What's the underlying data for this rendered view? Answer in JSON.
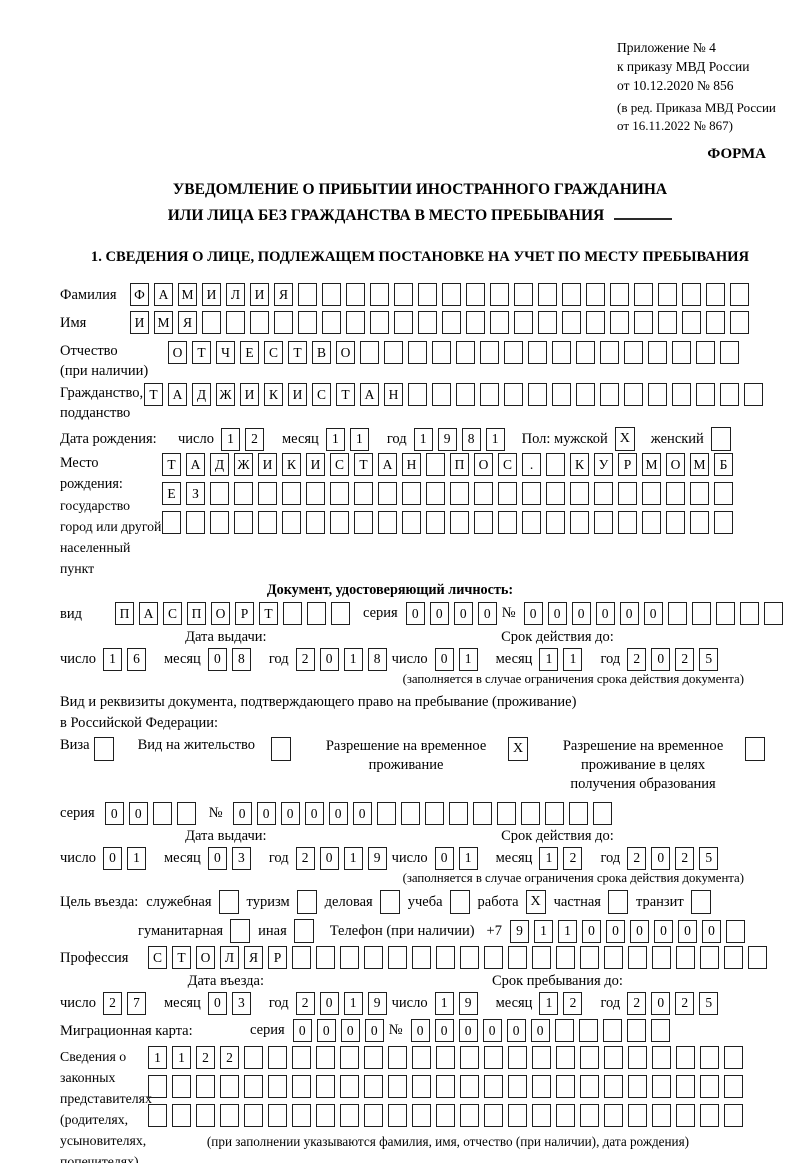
{
  "header": {
    "annex1": "Приложение № 4",
    "annex2": "к приказу МВД России",
    "annex3": "от 10.12.2020 № 856",
    "amend1": "(в ред. Приказа МВД России",
    "amend2": "от 16.11.2022 № 867)",
    "form_label": "ФОРМА",
    "title1": "УВЕДОМЛЕНИЕ О ПРИБЫТИИ ИНОСТРАННОГО ГРАЖДАНИНА",
    "title2": "ИЛИ ЛИЦА БЕЗ ГРАЖДАНСТВА В МЕСТО ПРЕБЫВАНИЯ",
    "section1": "1. СВЕДЕНИЯ О ЛИЦЕ, ПОДЛЕЖАЩЕМ ПОСТАНОВКЕ НА УЧЕТ ПО МЕСТУ ПРЕБЫВАНИЯ"
  },
  "person": {
    "surname": {
      "label": "Фамилия",
      "count": 26,
      "value": "ФАМИЛИЯ"
    },
    "firstname": {
      "label": "Имя",
      "count": 26,
      "value": "ИМЯ"
    },
    "patronymic": {
      "label": "Отчество",
      "note": "(при наличии)",
      "count": 24,
      "value": "ОТЧЕСТВО"
    },
    "citizenship": {
      "label1": "Гражданство,",
      "label2": "подданство",
      "count": 26,
      "value": "ТАДЖИКИСТАН"
    },
    "birth_date": {
      "label": "Дата рождения:",
      "day_label": "число",
      "month_label": "месяц",
      "year_label": "год",
      "day": {
        "count": 2,
        "value": "12"
      },
      "month": {
        "count": 2,
        "value": "11"
      },
      "year": {
        "count": 4,
        "value": "1981"
      }
    },
    "sex_label": "Пол: мужской",
    "sex_male": {
      "checked": true
    },
    "sex_female_label": "женский",
    "sex_female": {
      "checked": false
    },
    "birth_place": {
      "label1": "Место рождения:",
      "label2": "государство",
      "label3": "город или другой",
      "label4": "населенный пункт",
      "row1": {
        "count": 24,
        "value": "ТАДЖИКИСТАН ПОС. КУРМОМБ"
      },
      "row2": {
        "count": 24,
        "value": "ЕЗ"
      },
      "row3": {
        "count": 24,
        "value": ""
      }
    }
  },
  "identity_doc": {
    "heading": "Документ, удостоверяющий личность:",
    "kind_label": "вид",
    "kind": {
      "count": 10,
      "value": "ПАСПОРТ"
    },
    "series_label": "серия",
    "series": {
      "count": 4,
      "value": "0000"
    },
    "number_label": "№",
    "number": {
      "count": 11,
      "value": "000000"
    },
    "issue": {
      "heading": "Дата выдачи:",
      "day_label": "число",
      "month_label": "месяц",
      "year_label": "год",
      "day": {
        "count": 2,
        "value": "16"
      },
      "month": {
        "count": 2,
        "value": "08"
      },
      "year": {
        "count": 4,
        "value": "2018"
      }
    },
    "expiry": {
      "heading": "Срок действия до:",
      "day_label": "число",
      "month_label": "месяц",
      "year_label": "год",
      "day": {
        "count": 2,
        "value": "01"
      },
      "month": {
        "count": 2,
        "value": "11"
      },
      "year": {
        "count": 4,
        "value": "2025"
      }
    },
    "expiry_note": "(заполняется в случае ограничения срока действия документа)"
  },
  "residence_doc": {
    "intro1": "Вид и реквизиты документа, подтверждающего право на пребывание (проживание)",
    "intro2": "в Российской Федерации:",
    "options": [
      {
        "label": "Виза",
        "checked": false
      },
      {
        "label": "Вид на жительство",
        "checked": false
      },
      {
        "label": "Разрешение на временное\nпроживание",
        "checked": true
      },
      {
        "label": "Разрешение на временное\nпроживание в целях\nполучения образования",
        "checked": false
      }
    ],
    "series_label": "серия",
    "series": {
      "count": 4,
      "value": "00"
    },
    "number_label": "№",
    "number": {
      "count": 16,
      "value": "000000"
    },
    "issue": {
      "heading": "Дата выдачи:",
      "day_label": "число",
      "month_label": "месяц",
      "year_label": "год",
      "day": {
        "count": 2,
        "value": "01"
      },
      "month": {
        "count": 2,
        "value": "03"
      },
      "year": {
        "count": 4,
        "value": "2019"
      }
    },
    "expiry": {
      "heading": "Срок действия до:",
      "day_label": "число",
      "month_label": "месяц",
      "year_label": "год",
      "day": {
        "count": 2,
        "value": "01"
      },
      "month": {
        "count": 2,
        "value": "12"
      },
      "year": {
        "count": 4,
        "value": "2025"
      }
    },
    "expiry_note": "(заполняется в случае ограничения срока действия документа)"
  },
  "visit": {
    "purpose_label": "Цель въезда:",
    "purpose_options1": [
      {
        "label": "служебная",
        "checked": false
      },
      {
        "label": "туризм",
        "checked": false
      },
      {
        "label": "деловая",
        "checked": false
      },
      {
        "label": "учеба",
        "checked": false
      },
      {
        "label": "работа",
        "checked": true
      },
      {
        "label": "частная",
        "checked": false
      },
      {
        "label": "транзит",
        "checked": false
      }
    ],
    "purpose_options2": [
      {
        "label": "гуманитарная",
        "checked": false
      },
      {
        "label": "иная",
        "checked": false
      }
    ],
    "phone_label": "Телефон (при наличии)",
    "phone_prefix": "+7",
    "phone": {
      "count": 10,
      "value": "911000000"
    },
    "profession_label": "Профессия",
    "profession": {
      "count": 26,
      "value": "СТОЛЯР"
    },
    "entry": {
      "heading": "Дата въезда:",
      "day_label": "число",
      "month_label": "месяц",
      "year_label": "год",
      "day": {
        "count": 2,
        "value": "27"
      },
      "month": {
        "count": 2,
        "value": "03"
      },
      "year": {
        "count": 4,
        "value": "2019"
      }
    },
    "stay": {
      "heading": "Срок пребывания до:",
      "day_label": "число",
      "month_label": "месяц",
      "year_label": "год",
      "day": {
        "count": 2,
        "value": "19"
      },
      "month": {
        "count": 2,
        "value": "12"
      },
      "year": {
        "count": 4,
        "value": "2025"
      }
    },
    "migration_label": "Миграционная карта:",
    "mc_series_label": "серия",
    "mc_series": {
      "count": 4,
      "value": "0000"
    },
    "mc_number_label": "№",
    "mc_number": {
      "count": 11,
      "value": "000000"
    }
  },
  "representatives": {
    "label": "Сведения о\nзаконных\nпредставителях\n(родителях,\nусыновителях,\nпопечителях)",
    "row1": {
      "count": 25,
      "value": "1122"
    },
    "row2": {
      "count": 25,
      "value": ""
    },
    "row3": {
      "count": 25,
      "value": ""
    },
    "note": "(при заполнении указываются фамилия, имя, отчество (при наличии), дата рождения)"
  }
}
